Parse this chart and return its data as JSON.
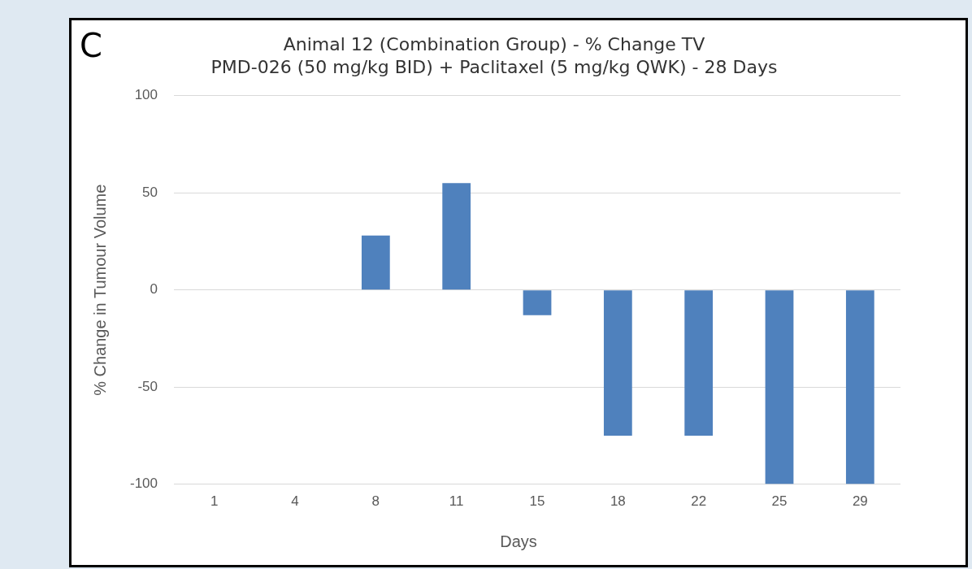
{
  "chart_data": {
    "type": "bar",
    "title": "Animal 12 (Combination Group) - % Change TV",
    "subtitle": "PMD-026 (50 mg/kg BID) + Paclitaxel (5 mg/kg QWK) - 28 Days",
    "annotations": [
      "C"
    ],
    "xlabel": "Days",
    "ylabel": "% Change in Tumour Volume",
    "categories": [
      "1",
      "4",
      "8",
      "11",
      "15",
      "18",
      "22",
      "25",
      "29"
    ],
    "values": [
      0,
      0,
      28,
      55,
      -13,
      -75,
      -75,
      -100,
      -100
    ],
    "color": "#4f81bd",
    "ylim": [
      -100,
      100
    ],
    "yticks": [
      -100,
      -50,
      0,
      50,
      100
    ],
    "grid": "y",
    "legend": false
  }
}
